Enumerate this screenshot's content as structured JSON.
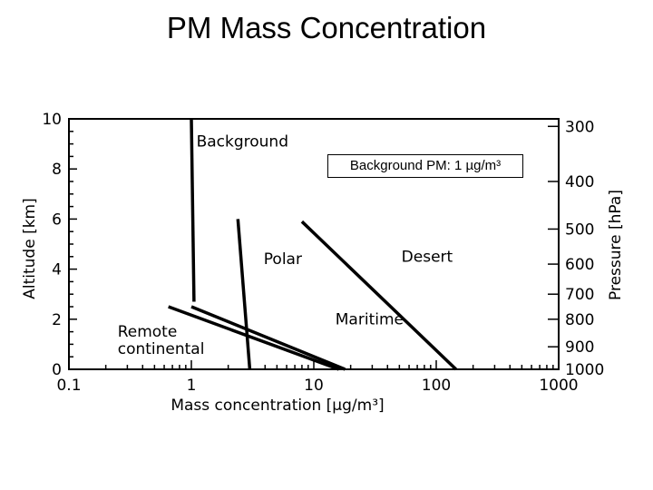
{
  "page_title": "PM Mass Concentration",
  "note": "Background PM: 1 µg/m³",
  "chart_data": {
    "type": "line",
    "xscale": "log",
    "xlim": [
      0.1,
      1000
    ],
    "ylim": [
      0,
      10
    ],
    "xlabel": "Mass concentration [µg/m³]",
    "ylabel": "Altitude [km]",
    "y2label": "Pressure [hPa]",
    "xticks": [
      "0.1",
      "1",
      "10",
      "100",
      "1000"
    ],
    "yticks": [
      "0",
      "2",
      "4",
      "6",
      "8",
      "10"
    ],
    "pressure_ticks": [
      {
        "label": "1000",
        "altitude": 0.0
      },
      {
        "label": "900",
        "altitude": 0.9
      },
      {
        "label": "800",
        "altitude": 2.0
      },
      {
        "label": "700",
        "altitude": 3.0
      },
      {
        "label": "600",
        "altitude": 4.2
      },
      {
        "label": "500",
        "altitude": 5.6
      },
      {
        "label": "400",
        "altitude": 7.5
      },
      {
        "label": "300",
        "altitude": 9.7
      }
    ],
    "series": [
      {
        "name": "Background",
        "points": [
          [
            1.0,
            10.0
          ],
          [
            1.05,
            2.7
          ]
        ],
        "label_at": [
          1.1,
          8.9
        ]
      },
      {
        "name": "Polar",
        "points": [
          [
            2.4,
            6.0
          ],
          [
            3.0,
            0.0
          ]
        ],
        "label_at": [
          3.9,
          4.2
        ]
      },
      {
        "name": "Desert",
        "points": [
          [
            8.0,
            5.9
          ],
          [
            145,
            0.0
          ]
        ],
        "label_at": [
          52,
          4.3
        ]
      },
      {
        "name": "Maritime",
        "points": [
          [
            1.0,
            2.5
          ],
          [
            18,
            0.0
          ]
        ],
        "label_at": [
          15,
          1.8
        ]
      },
      {
        "name": "Remote continental",
        "points": [
          [
            0.65,
            2.5
          ],
          [
            16,
            0.0
          ]
        ],
        "label_at": [
          0.25,
          1.3
        ]
      }
    ]
  }
}
